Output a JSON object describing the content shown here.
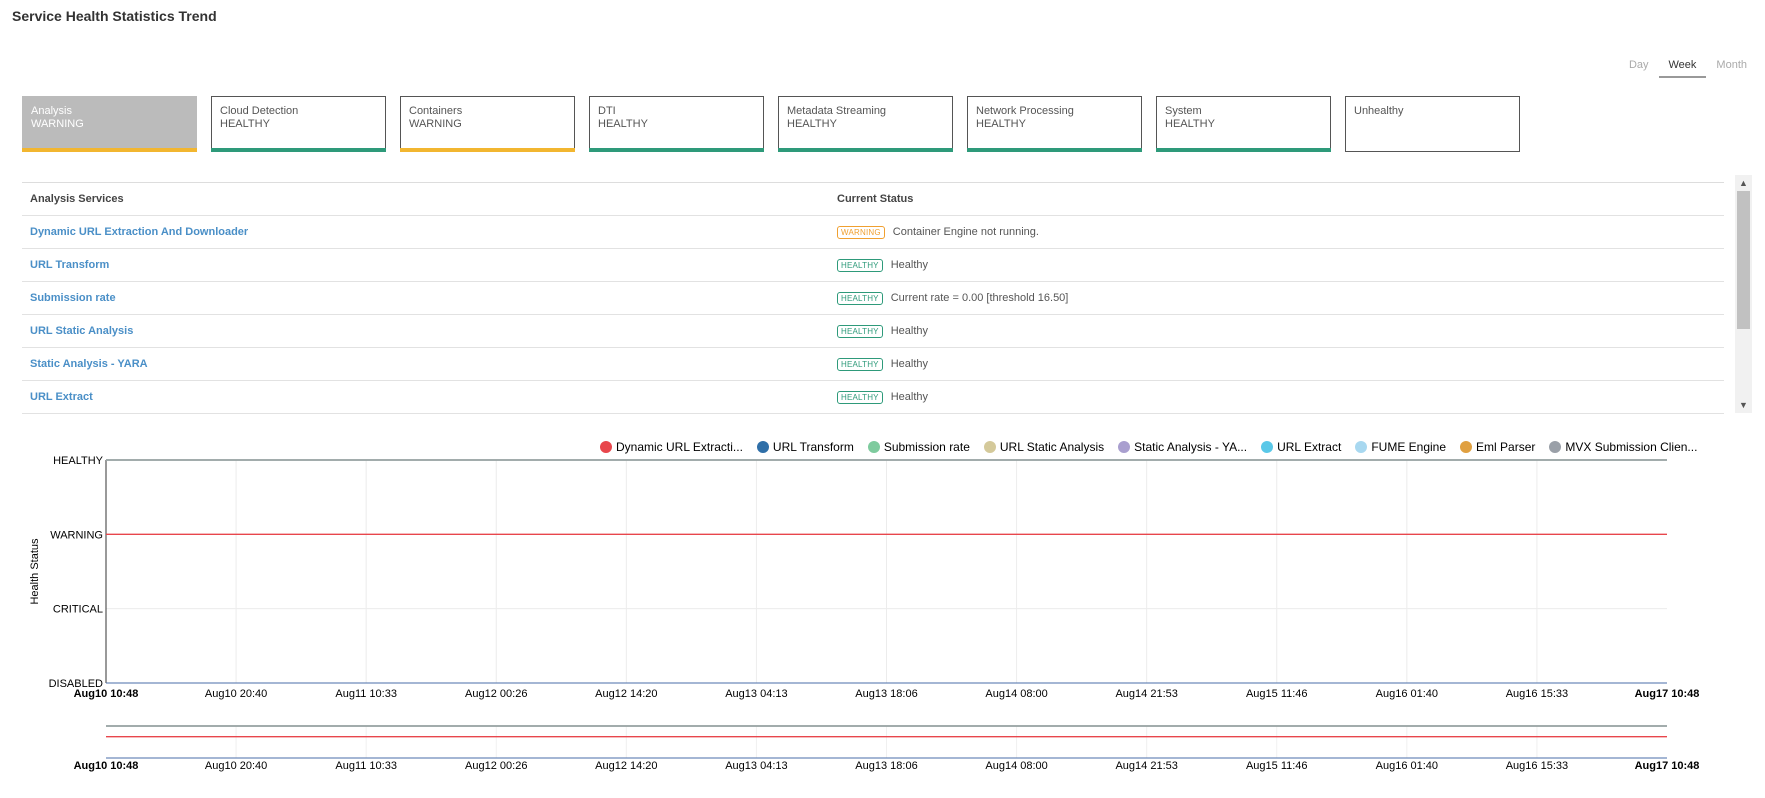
{
  "page": {
    "title": "Service Health Statistics Trend"
  },
  "range_tabs": [
    {
      "label": "Day",
      "active": false
    },
    {
      "label": "Week",
      "active": true
    },
    {
      "label": "Month",
      "active": false
    }
  ],
  "categories": [
    {
      "name": "Analysis",
      "status": "WARNING",
      "selected": true,
      "bar_color": "#f2b630"
    },
    {
      "name": "Cloud Detection",
      "status": "HEALTHY",
      "selected": false,
      "bar_color": "#2e9a7a"
    },
    {
      "name": "Containers",
      "status": "WARNING",
      "selected": false,
      "bar_color": "#f2b630"
    },
    {
      "name": "DTI",
      "status": "HEALTHY",
      "selected": false,
      "bar_color": "#2e9a7a"
    },
    {
      "name": "Metadata Streaming",
      "status": "HEALTHY",
      "selected": false,
      "bar_color": "#2e9a7a"
    },
    {
      "name": "Network Processing",
      "status": "HEALTHY",
      "selected": false,
      "bar_color": "#2e9a7a"
    },
    {
      "name": "System",
      "status": "HEALTHY",
      "selected": false,
      "bar_color": "#2e9a7a"
    },
    {
      "name": "Unhealthy",
      "status": "",
      "selected": false,
      "bar_color": ""
    }
  ],
  "table": {
    "headers": {
      "service": "Analysis Services",
      "status": "Current Status"
    },
    "rows": [
      {
        "service": "Dynamic URL Extraction And Downloader",
        "badge": "WARNING",
        "message": "Container Engine not running."
      },
      {
        "service": "URL Transform",
        "badge": "HEALTHY",
        "message": "Healthy"
      },
      {
        "service": "Submission rate",
        "badge": "HEALTHY",
        "message": "Current rate = 0.00 [threshold 16.50]"
      },
      {
        "service": "URL Static Analysis",
        "badge": "HEALTHY",
        "message": "Healthy"
      },
      {
        "service": "Static Analysis - YARA",
        "badge": "HEALTHY",
        "message": "Healthy"
      },
      {
        "service": "URL Extract",
        "badge": "HEALTHY",
        "message": "Healthy"
      }
    ]
  },
  "colors": {
    "warning": "#f0a030",
    "healthy": "#2e9a7a",
    "link": "#4a8fc7"
  },
  "chart_data": {
    "type": "line",
    "title": "",
    "xlabel": "",
    "ylabel": "Health Status",
    "y_categories": [
      "DISABLED",
      "CRITICAL",
      "WARNING",
      "HEALTHY"
    ],
    "x_ticks": [
      "Aug10 10:48",
      "Aug10 20:40",
      "Aug11 10:33",
      "Aug12 00:26",
      "Aug12 14:20",
      "Aug13 04:13",
      "Aug13 18:06",
      "Aug14 08:00",
      "Aug14 21:53",
      "Aug15 11:46",
      "Aug16 01:40",
      "Aug16 15:33",
      "Aug17 10:48"
    ],
    "x_range": [
      "Aug10 10:48",
      "Aug17 10:48"
    ],
    "grid": true,
    "legend_position": "top-right",
    "series": [
      {
        "name": "Dynamic URL Extracti...",
        "color": "#e8464c",
        "value": "WARNING"
      },
      {
        "name": "URL Transform",
        "color": "#2f6fa8",
        "value": "HEALTHY"
      },
      {
        "name": "Submission rate",
        "color": "#7ecb9e",
        "value": "HEALTHY"
      },
      {
        "name": "URL Static Analysis",
        "color": "#d4c99a",
        "value": "HEALTHY"
      },
      {
        "name": "Static Analysis - YA...",
        "color": "#a99fcf",
        "value": "HEALTHY"
      },
      {
        "name": "URL Extract",
        "color": "#5ac8e8",
        "value": "HEALTHY"
      },
      {
        "name": "FUME Engine",
        "color": "#a8d8f0",
        "value": "HEALTHY"
      },
      {
        "name": "Eml Parser",
        "color": "#e0a040",
        "value": "HEALTHY"
      },
      {
        "name": "MVX Submission Clien...",
        "color": "#9aa0a8",
        "value": "HEALTHY"
      }
    ]
  }
}
